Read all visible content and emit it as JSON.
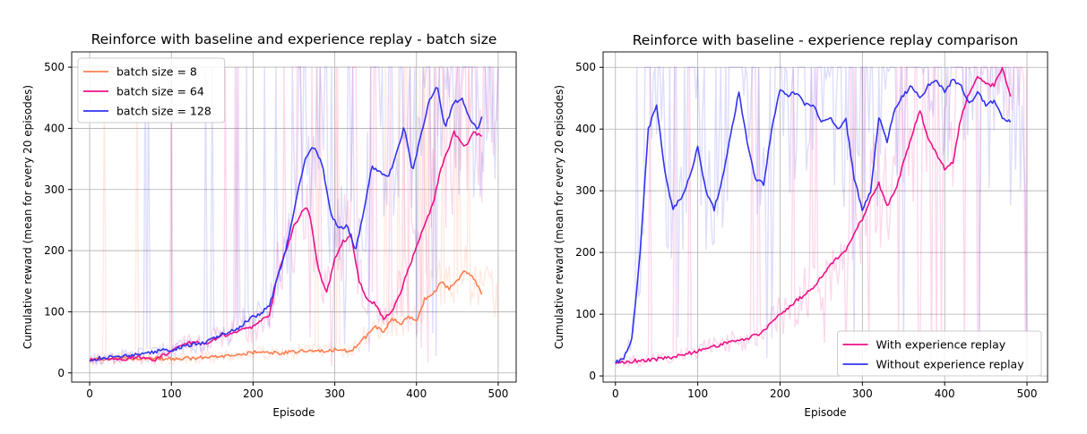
{
  "chart_data": [
    {
      "type": "line",
      "title": "Reinforce with baseline and experience replay - batch size",
      "xlabel": "Episode",
      "ylabel": "Cumulative reward (mean for every 20 episodes)",
      "xlim": [
        -22,
        522
      ],
      "ylim": [
        -15,
        525
      ],
      "xticks": [
        0,
        100,
        200,
        300,
        400,
        500
      ],
      "yticks": [
        0,
        100,
        200,
        300,
        400,
        500
      ],
      "grid": true,
      "legend": "top-left",
      "series": [
        {
          "name": "batch size = 8",
          "color": "#ff7f50",
          "x": [
            0,
            20,
            40,
            60,
            80,
            100,
            120,
            140,
            160,
            180,
            200,
            220,
            240,
            260,
            280,
            300,
            320,
            340,
            350,
            360,
            370,
            380,
            390,
            400,
            410,
            420,
            430,
            440,
            450,
            460,
            470,
            480
          ],
          "y": [
            22,
            24,
            25,
            23,
            24,
            23,
            24,
            25,
            26,
            28,
            34,
            33,
            33,
            36,
            35,
            38,
            35,
            62,
            75,
            68,
            90,
            80,
            92,
            85,
            120,
            128,
            148,
            138,
            152,
            168,
            155,
            130
          ]
        },
        {
          "name": "batch size = 64",
          "color": "#ee1188",
          "x": [
            0,
            20,
            40,
            60,
            80,
            100,
            120,
            140,
            160,
            180,
            200,
            220,
            230,
            240,
            250,
            260,
            265,
            270,
            280,
            290,
            300,
            310,
            320,
            330,
            340,
            350,
            360,
            370,
            380,
            390,
            400,
            410,
            420,
            430,
            440,
            445,
            450,
            460,
            470,
            480
          ],
          "y": [
            20,
            24,
            22,
            26,
            22,
            35,
            50,
            48,
            60,
            68,
            75,
            95,
            160,
            200,
            240,
            262,
            275,
            255,
            170,
            130,
            185,
            215,
            225,
            150,
            120,
            112,
            88,
            100,
            130,
            170,
            205,
            245,
            275,
            335,
            370,
            395,
            385,
            370,
            395,
            385
          ]
        },
        {
          "name": "batch size = 128",
          "color": "#3333ee",
          "x": [
            0,
            20,
            40,
            60,
            80,
            100,
            120,
            140,
            160,
            180,
            200,
            210,
            220,
            240,
            255,
            265,
            275,
            285,
            295,
            305,
            315,
            325,
            335,
            345,
            355,
            365,
            375,
            385,
            395,
            405,
            415,
            425,
            435,
            445,
            455,
            465,
            475,
            480
          ],
          "y": [
            22,
            25,
            28,
            30,
            35,
            38,
            45,
            50,
            62,
            72,
            92,
            98,
            110,
            200,
            300,
            355,
            370,
            340,
            260,
            235,
            240,
            200,
            260,
            338,
            330,
            320,
            355,
            405,
            330,
            385,
            445,
            470,
            400,
            440,
            450,
            415,
            400,
            420
          ]
        }
      ]
    },
    {
      "type": "line",
      "title": "Reinforce with baseline  - experience replay comparison",
      "xlabel": "Episode",
      "ylabel": "Cumulative reward (mean for every 20 episodes)",
      "xlim": [
        -15,
        525
      ],
      "ylim": [
        -10,
        525
      ],
      "xticks": [
        0,
        100,
        200,
        300,
        400,
        500
      ],
      "yticks": [
        0,
        100,
        200,
        300,
        400,
        500
      ],
      "grid": true,
      "legend": "bottom-right",
      "series": [
        {
          "name": "With experience replay",
          "color": "#ee1188",
          "x": [
            0,
            20,
            40,
            60,
            80,
            100,
            120,
            140,
            160,
            180,
            200,
            220,
            240,
            260,
            280,
            300,
            310,
            320,
            330,
            340,
            350,
            360,
            370,
            380,
            390,
            400,
            410,
            420,
            430,
            440,
            450,
            460,
            470,
            480
          ],
          "y": [
            22,
            24,
            26,
            28,
            34,
            40,
            48,
            56,
            60,
            72,
            100,
            122,
            142,
            178,
            205,
            255,
            285,
            312,
            275,
            300,
            345,
            390,
            430,
            385,
            360,
            335,
            345,
            420,
            460,
            485,
            475,
            470,
            500,
            450
          ]
        },
        {
          "name": "Without experience replay",
          "color": "#3333ee",
          "x": [
            0,
            10,
            20,
            30,
            40,
            50,
            60,
            70,
            80,
            90,
            100,
            110,
            120,
            130,
            140,
            150,
            160,
            170,
            180,
            190,
            200,
            210,
            220,
            230,
            240,
            250,
            260,
            270,
            280,
            290,
            300,
            310,
            320,
            330,
            340,
            350,
            360,
            370,
            380,
            390,
            400,
            410,
            420,
            430,
            440,
            450,
            460,
            470,
            480
          ],
          "y": [
            22,
            28,
            60,
            200,
            400,
            440,
            330,
            270,
            290,
            320,
            370,
            300,
            270,
            320,
            390,
            460,
            380,
            320,
            310,
            400,
            465,
            455,
            460,
            440,
            440,
            410,
            420,
            400,
            415,
            320,
            270,
            300,
            420,
            380,
            435,
            455,
            470,
            450,
            470,
            478,
            460,
            480,
            470,
            440,
            460,
            440,
            445,
            420,
            410
          ]
        }
      ]
    }
  ]
}
